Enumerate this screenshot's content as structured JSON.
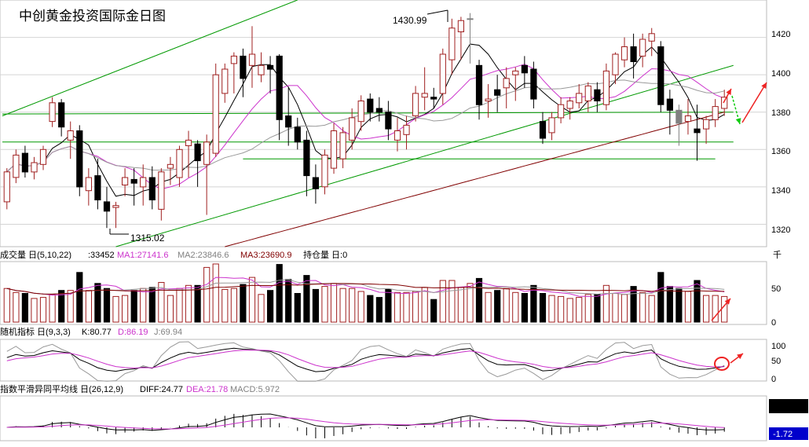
{
  "title": "中创黄金投资国际金日图",
  "colors": {
    "title": "#e53333",
    "up": "#a02020",
    "down": "#000000",
    "doji": "#808080",
    "ma5": "#000000",
    "ma10": "#cc33cc",
    "ma20": "#999999",
    "ma60": "#800000",
    "trend": "#009900",
    "arrow_red": "#ee2222",
    "arrow_green": "#11cc11",
    "grid": "#d4d4d4",
    "macd_box": "#000000",
    "macd_value_box": "#0000cc"
  },
  "annotations": {
    "high": "1430.99",
    "low": "1315.02"
  },
  "volume_header": {
    "name": "成交量 日(5,10,22)",
    "vol": ":33452",
    "ma1": "MA1:27141.6",
    "ma2": "MA2:23846.6",
    "ma3": "MA3:23690.9",
    "hold": "持仓量 日:0"
  },
  "kdj_header": {
    "name": "随机指标 日(9,3,3)",
    "k": "K:80.77",
    "d": "D:86.19",
    "j": "J:69.94"
  },
  "macd_header": {
    "name": "指数平滑异同平均线 日(26,12,9)",
    "diff": "DIFF:24.77",
    "dea": "DEA:21.78",
    "macd": "MACD:5.972"
  },
  "axes": {
    "price_ticks": [
      "1420",
      "1400",
      "1380",
      "1360",
      "1340",
      "1320"
    ],
    "volume_unit": "千",
    "volume_ticks": [
      "50",
      "0"
    ],
    "kdj_ticks": [
      "100",
      "50",
      "0"
    ],
    "macd_value": "-1.72"
  },
  "chart_data": {
    "type": "candlestick",
    "title": "中创黄金投资国际金日图",
    "ylim": [
      1308,
      1440
    ],
    "series": [
      {
        "name": "OHLC",
        "ohlc": [
          [
            1332,
            1350,
            1328,
            1348
          ],
          [
            1345,
            1360,
            1342,
            1357
          ],
          [
            1358,
            1362,
            1345,
            1348
          ],
          [
            1348,
            1356,
            1344,
            1353
          ],
          [
            1352,
            1362,
            1349,
            1360
          ],
          [
            1375,
            1388,
            1372,
            1385
          ],
          [
            1385,
            1387,
            1367,
            1372
          ],
          [
            1365,
            1375,
            1355,
            1370
          ],
          [
            1370,
            1373,
            1335,
            1340
          ],
          [
            1338,
            1350,
            1330,
            1345
          ],
          [
            1346,
            1355,
            1328,
            1333
          ],
          [
            1332,
            1340,
            1318,
            1327
          ],
          [
            1329,
            1332,
            1318,
            1330
          ],
          [
            1341,
            1350,
            1335,
            1345
          ],
          [
            1344,
            1350,
            1330,
            1342
          ],
          [
            1340,
            1352,
            1330,
            1345
          ],
          [
            1345,
            1351,
            1328,
            1333
          ],
          [
            1328,
            1350,
            1322,
            1348
          ],
          [
            1350,
            1356,
            1341,
            1352
          ],
          [
            1345,
            1362,
            1340,
            1360
          ],
          [
            1362,
            1370,
            1345,
            1365
          ],
          [
            1363,
            1365,
            1340,
            1354
          ],
          [
            1352,
            1368,
            1325,
            1364
          ],
          [
            1358,
            1406,
            1356,
            1400
          ],
          [
            1390,
            1406,
            1385,
            1403
          ],
          [
            1406,
            1412,
            1390,
            1410
          ],
          [
            1410,
            1414,
            1388,
            1398
          ],
          [
            1405,
            1426,
            1393,
            1411
          ],
          [
            1400,
            1412,
            1396,
            1405
          ],
          [
            1405,
            1410,
            1390,
            1403
          ],
          [
            1410,
            1411,
            1365,
            1376
          ],
          [
            1378,
            1393,
            1362,
            1372
          ],
          [
            1372,
            1377,
            1360,
            1364
          ],
          [
            1365,
            1370,
            1335,
            1346
          ],
          [
            1345,
            1352,
            1331,
            1339
          ],
          [
            1340,
            1360,
            1336,
            1357
          ],
          [
            1350,
            1374,
            1347,
            1370
          ],
          [
            1355,
            1372,
            1350,
            1369
          ],
          [
            1365,
            1382,
            1360,
            1377
          ],
          [
            1375,
            1389,
            1370,
            1386
          ],
          [
            1387,
            1390,
            1375,
            1380
          ],
          [
            1382,
            1388,
            1375,
            1380
          ],
          [
            1380,
            1386,
            1365,
            1371
          ],
          [
            1365,
            1377,
            1359,
            1370
          ],
          [
            1368,
            1378,
            1360,
            1373
          ],
          [
            1378,
            1394,
            1375,
            1390
          ],
          [
            1388,
            1404,
            1381,
            1390
          ],
          [
            1388,
            1393,
            1382,
            1387
          ],
          [
            1390,
            1414,
            1384,
            1411
          ],
          [
            1408,
            1430,
            1400,
            1425
          ],
          [
            1423,
            1431,
            1408,
            1429
          ],
          [
            1430,
            1433,
            1406,
            1430
          ],
          [
            1405,
            1408,
            1376,
            1384
          ],
          [
            1386,
            1395,
            1377,
            1387
          ],
          [
            1392,
            1400,
            1380,
            1389
          ],
          [
            1393,
            1404,
            1382,
            1398
          ],
          [
            1400,
            1404,
            1386,
            1402
          ],
          [
            1405,
            1410,
            1393,
            1401
          ],
          [
            1403,
            1407,
            1382,
            1387
          ],
          [
            1375,
            1380,
            1363,
            1366
          ],
          [
            1369,
            1380,
            1365,
            1377
          ],
          [
            1377,
            1388,
            1374,
            1384
          ],
          [
            1382,
            1388,
            1376,
            1386
          ],
          [
            1385,
            1395,
            1382,
            1390
          ],
          [
            1386,
            1396,
            1380,
            1394
          ],
          [
            1392,
            1396,
            1380,
            1386
          ],
          [
            1384,
            1406,
            1381,
            1402
          ],
          [
            1400,
            1412,
            1395,
            1411
          ],
          [
            1408,
            1420,
            1404,
            1415
          ],
          [
            1415,
            1422,
            1398,
            1407
          ],
          [
            1410,
            1422,
            1404,
            1419
          ],
          [
            1418,
            1425,
            1410,
            1422
          ],
          [
            1415,
            1418,
            1380,
            1384
          ],
          [
            1387,
            1392,
            1368,
            1381
          ],
          [
            1381,
            1384,
            1362,
            1374
          ],
          [
            1375,
            1387,
            1368,
            1378
          ],
          [
            1371,
            1384,
            1354,
            1369
          ],
          [
            1371,
            1378,
            1363,
            1376
          ],
          [
            1376,
            1387,
            1372,
            1383
          ],
          [
            1382,
            1392,
            1378,
            1388
          ]
        ]
      }
    ]
  }
}
